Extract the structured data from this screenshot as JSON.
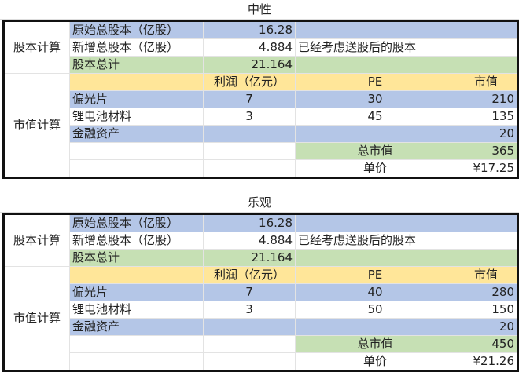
{
  "colors": {
    "blue": "#b4c6e7",
    "green": "#c6e0b4",
    "yellow": "#ffe699"
  },
  "sheets": [
    {
      "title": "中性",
      "share_label": "股本计算",
      "value_label": "市值计算",
      "orig_label": "原始总股本（亿股）",
      "orig": "16.28",
      "new_label": "新增总股本（亿股）",
      "new": "4.884",
      "note": "已经考虑送股后的股本",
      "total_label": "股本总计",
      "total": "21.164",
      "hdr_profit": "利润（亿元）",
      "hdr_pe": "PE",
      "hdr_mv": "市值",
      "rows": [
        {
          "name": "偏光片",
          "profit": "7",
          "pe": "30",
          "mv": "210"
        },
        {
          "name": "锂电池材料",
          "profit": "3",
          "pe": "45",
          "mv": "135"
        }
      ],
      "fin_label": "金融资产",
      "fin": "20",
      "sum_label": "总市值",
      "sum": "365",
      "price_label": "单价",
      "price": "¥17.25"
    },
    {
      "title": "乐观",
      "share_label": "股本计算",
      "value_label": "市值计算",
      "orig_label": "原始总股本（亿股）",
      "orig": "16.28",
      "new_label": "新增总股本（亿股）",
      "new": "4.884",
      "note": "已经考虑送股后的股本",
      "total_label": "股本总计",
      "total": "21.164",
      "hdr_profit": "利润（亿元）",
      "hdr_pe": "PE",
      "hdr_mv": "市值",
      "rows": [
        {
          "name": "偏光片",
          "profit": "7",
          "pe": "40",
          "mv": "280"
        },
        {
          "name": "锂电池材料",
          "profit": "3",
          "pe": "50",
          "mv": "150"
        }
      ],
      "fin_label": "金融资产",
      "fin": "20",
      "sum_label": "总市值",
      "sum": "450",
      "price_label": "单价",
      "price": "¥21.26"
    }
  ]
}
